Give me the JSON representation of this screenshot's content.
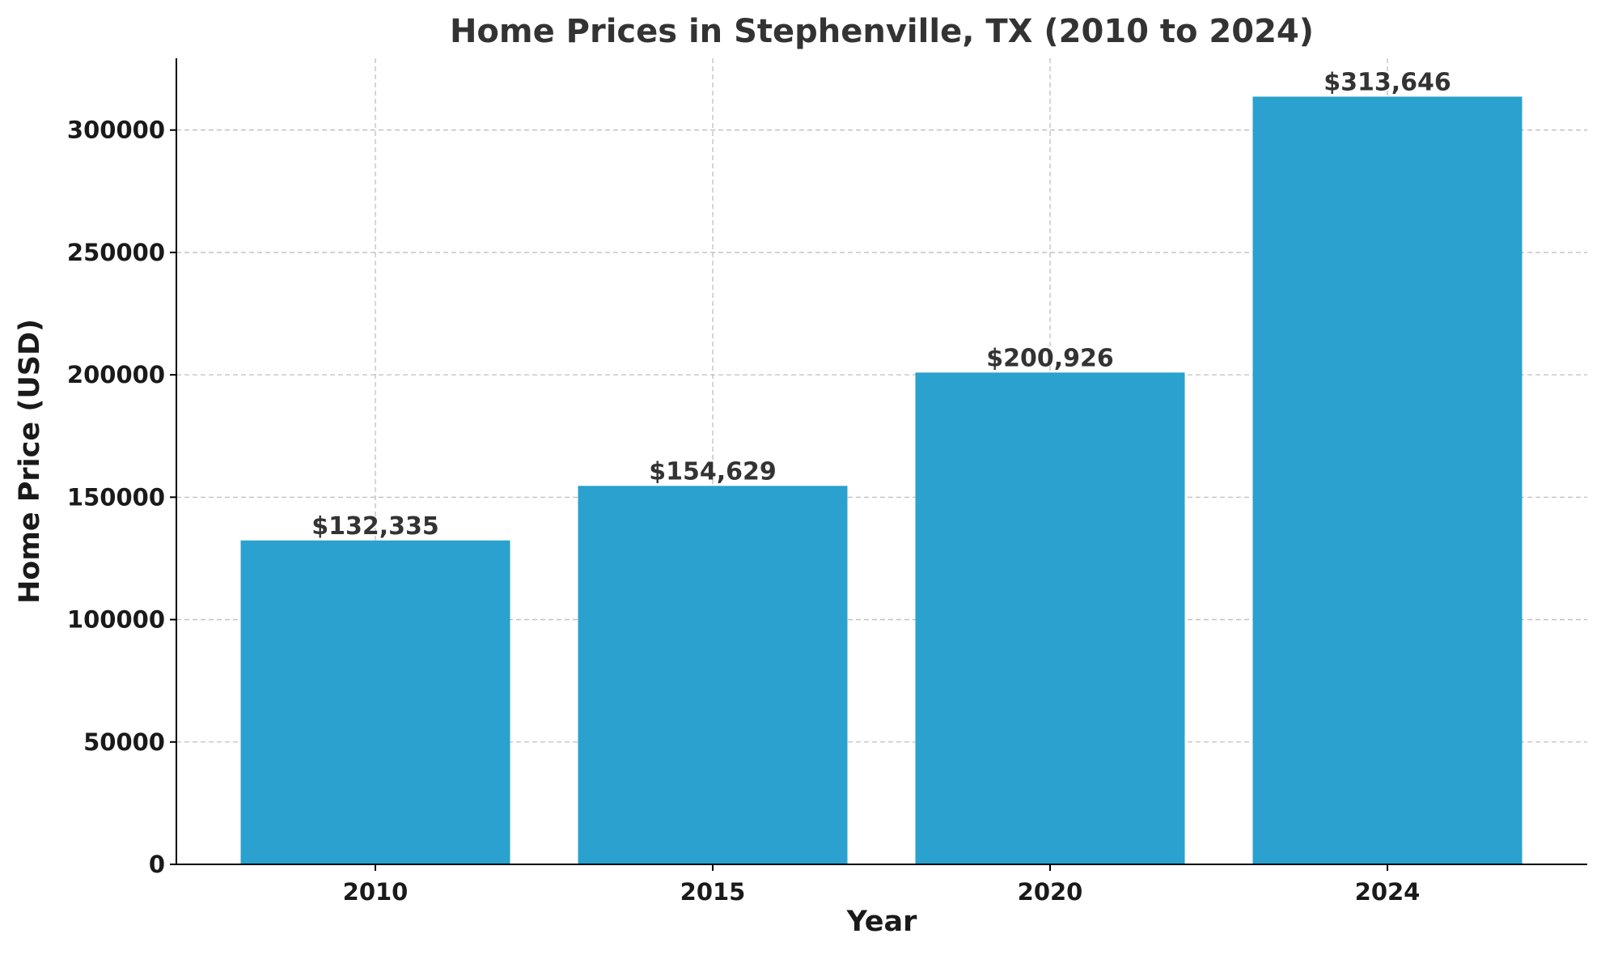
{
  "chart_data": {
    "type": "bar",
    "title": "Home Prices in Stephenville, TX (2010 to 2024)",
    "xlabel": "Year",
    "ylabel": "Home Price (USD)",
    "categories": [
      "2010",
      "2015",
      "2020",
      "2024"
    ],
    "values": [
      132335,
      154629,
      200926,
      313646
    ],
    "data_labels": [
      "$132,335",
      "$154,629",
      "$200,926",
      "$313,646"
    ],
    "yticks": [
      0,
      50000,
      100000,
      150000,
      200000,
      250000,
      300000
    ],
    "ylim": [
      0,
      329328
    ],
    "grid": true,
    "bar_color": "#2aa1ce"
  }
}
